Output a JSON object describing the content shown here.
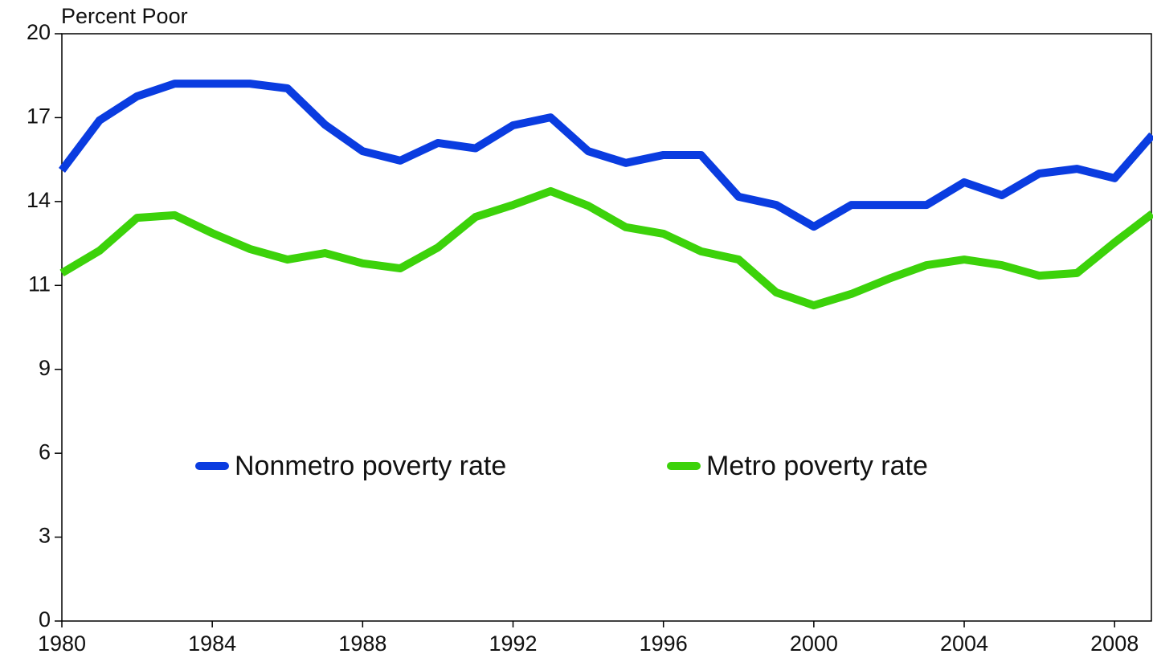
{
  "chart_data": {
    "type": "line",
    "y_axis_label": "Percent Poor",
    "x": [
      1980,
      1981,
      1982,
      1983,
      1984,
      1985,
      1986,
      1987,
      1988,
      1989,
      1990,
      1991,
      1992,
      1993,
      1994,
      1995,
      1996,
      1997,
      1998,
      1999,
      2000,
      2001,
      2002,
      2003,
      2004,
      2005,
      2006,
      2007,
      2008,
      2009
    ],
    "series": [
      {
        "name": "Nonmetro poverty rate",
        "color": "#0a3ce0",
        "values": [
          15.35,
          17.05,
          17.87,
          18.3,
          18.3,
          18.3,
          18.14,
          16.9,
          16.0,
          15.68,
          16.28,
          16.1,
          16.88,
          17.15,
          16.0,
          15.6,
          15.87,
          15.87,
          14.45,
          14.17,
          13.43,
          14.17,
          14.17,
          14.17,
          14.94,
          14.5,
          15.24,
          15.4,
          15.08,
          16.55
        ]
      },
      {
        "name": "Metro poverty rate",
        "color": "#3cd20a",
        "values": [
          11.85,
          12.61,
          13.73,
          13.82,
          13.21,
          12.67,
          12.31,
          12.53,
          12.18,
          12.01,
          12.72,
          13.76,
          14.17,
          14.64,
          14.14,
          13.41,
          13.19,
          12.59,
          12.31,
          11.19,
          10.75,
          11.14,
          11.66,
          12.12,
          12.31,
          12.12,
          11.76,
          11.85,
          12.89,
          13.87
        ]
      }
    ],
    "xlim": [
      1980,
      2009
    ],
    "xticks": [
      1980,
      1984,
      1988,
      1992,
      1996,
      2000,
      2004,
      2008
    ],
    "ylim": [
      0,
      20
    ],
    "yticks": [
      0,
      {
        "value": 2.857,
        "label": "3"
      },
      {
        "value": 5.714,
        "label": "6"
      },
      {
        "value": 8.571,
        "label": "9"
      },
      {
        "value": 11.429,
        "label": "11"
      },
      {
        "value": 14.286,
        "label": "14"
      },
      {
        "value": 17.143,
        "label": "17"
      },
      20
    ],
    "legend": "center"
  }
}
